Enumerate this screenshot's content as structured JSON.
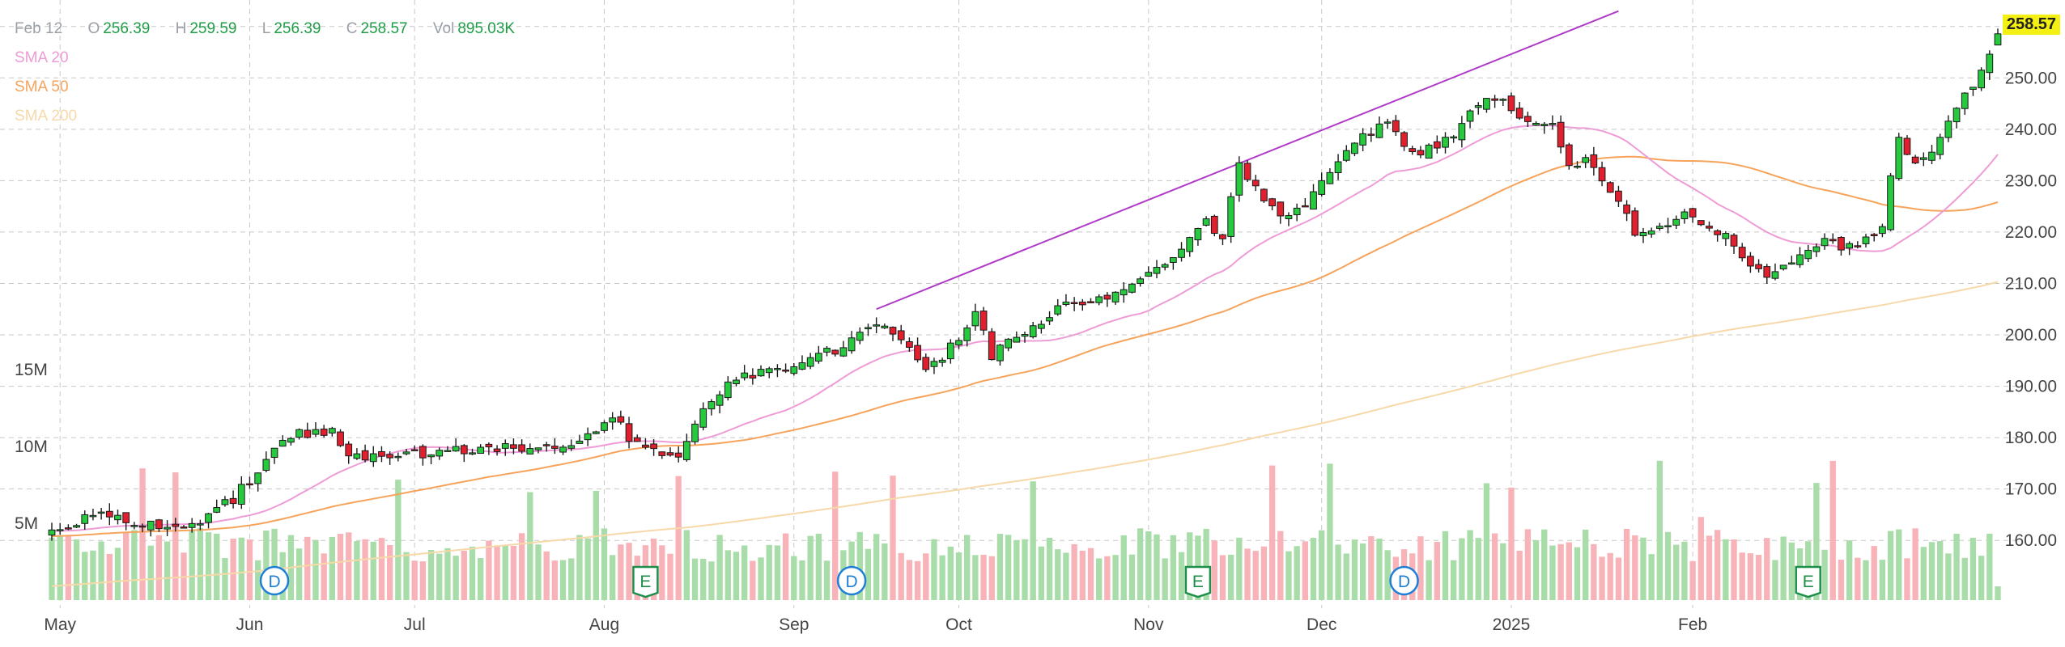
{
  "legend": {
    "date": "Feb 12",
    "open_key": "O",
    "open": "256.39",
    "high_key": "H",
    "high": "259.59",
    "low_key": "L",
    "low": "256.39",
    "close_key": "C",
    "close": "258.57",
    "vol_key": "Vol",
    "vol": "895.03K",
    "sma20": "SMA 20",
    "sma50": "SMA 50",
    "sma200": "SMA 200"
  },
  "last_price_label": "258.57",
  "colors": {
    "up": "#27c93f",
    "down": "#e0202e",
    "vol_up": "#a8dca8",
    "vol_down": "#f7b3b8",
    "sma20": "#ee9bd6",
    "sma50": "#f6a35c",
    "sma200": "#f7d9a9",
    "trendline": "#b03ac8",
    "grid": "#c8c8c8",
    "event_d": "#1f7fd6",
    "event_e": "#1e8f4a"
  },
  "chart_data": {
    "type": "candlestick",
    "title": "",
    "y_axis": {
      "ticks": [
        160,
        170,
        180,
        190,
        200,
        210,
        220,
        230,
        240,
        250,
        260
      ],
      "range": [
        155,
        262
      ]
    },
    "volume_axis": {
      "ticks": [
        "5M",
        "10M",
        "15M"
      ],
      "values": [
        5,
        10,
        15
      ]
    },
    "x_axis": {
      "labels": [
        {
          "label": "May",
          "date": "2024-05-01"
        },
        {
          "label": "Jun",
          "date": "2024-06-03"
        },
        {
          "label": "Jul",
          "date": "2024-07-01"
        },
        {
          "label": "Aug",
          "date": "2024-08-01"
        },
        {
          "label": "Sep",
          "date": "2024-09-03"
        },
        {
          "label": "Oct",
          "date": "2024-10-01"
        },
        {
          "label": "Nov",
          "date": "2024-11-01"
        },
        {
          "label": "Dec",
          "date": "2024-12-02"
        },
        {
          "label": "2025",
          "date": "2025-01-02"
        },
        {
          "label": "Feb",
          "date": "2025-02-03"
        }
      ]
    },
    "price_keypoints": [
      [
        0,
        162
      ],
      [
        6,
        165
      ],
      [
        10,
        163
      ],
      [
        14,
        163
      ],
      [
        18,
        164
      ],
      [
        22,
        168
      ],
      [
        26,
        176
      ],
      [
        30,
        181
      ],
      [
        34,
        181
      ],
      [
        36,
        176
      ],
      [
        40,
        177
      ],
      [
        46,
        177
      ],
      [
        52,
        178
      ],
      [
        56,
        178
      ],
      [
        60,
        179
      ],
      [
        64,
        179
      ],
      [
        68,
        184
      ],
      [
        70,
        180
      ],
      [
        72,
        178
      ],
      [
        74,
        176
      ],
      [
        76,
        177
      ],
      [
        79,
        186
      ],
      [
        82,
        190
      ],
      [
        86,
        193
      ],
      [
        90,
        193
      ],
      [
        96,
        198
      ],
      [
        100,
        203
      ],
      [
        102,
        200
      ],
      [
        104,
        197
      ],
      [
        106,
        194
      ],
      [
        108,
        196
      ],
      [
        112,
        204
      ],
      [
        114,
        196
      ],
      [
        116,
        199
      ],
      [
        122,
        205
      ],
      [
        128,
        208
      ],
      [
        132,
        210
      ],
      [
        136,
        216
      ],
      [
        140,
        222
      ],
      [
        142,
        218
      ],
      [
        144,
        234
      ],
      [
        146,
        228
      ],
      [
        148,
        224
      ],
      [
        150,
        223
      ],
      [
        152,
        225
      ],
      [
        154,
        229
      ],
      [
        156,
        233
      ],
      [
        158,
        237
      ],
      [
        160,
        240
      ],
      [
        162,
        242
      ],
      [
        164,
        236
      ],
      [
        166,
        235
      ],
      [
        168,
        237
      ],
      [
        170,
        239
      ],
      [
        172,
        243
      ],
      [
        174,
        247
      ],
      [
        176,
        246
      ],
      [
        178,
        243
      ],
      [
        180,
        242
      ],
      [
        182,
        241
      ],
      [
        184,
        232
      ],
      [
        186,
        234
      ],
      [
        188,
        231
      ],
      [
        190,
        226
      ],
      [
        192,
        220
      ],
      [
        194,
        221
      ],
      [
        196,
        222
      ],
      [
        198,
        223
      ],
      [
        200,
        222
      ],
      [
        202,
        220
      ],
      [
        204,
        218
      ],
      [
        206,
        213
      ],
      [
        208,
        212
      ],
      [
        210,
        214
      ],
      [
        212,
        215
      ],
      [
        214,
        218
      ],
      [
        216,
        218
      ],
      [
        218,
        217
      ],
      [
        220,
        219
      ],
      [
        222,
        221
      ],
      [
        224,
        239
      ],
      [
        226,
        233
      ],
      [
        228,
        236
      ],
      [
        230,
        242
      ],
      [
        232,
        246
      ],
      [
        234,
        252
      ],
      [
        236,
        258
      ]
    ],
    "total_sessions": 237,
    "last_candle": {
      "open": 256.39,
      "high": 259.59,
      "low": 256.39,
      "close": 258.57
    },
    "trendline": {
      "from": [
        100,
        205
      ],
      "to": [
        190,
        263
      ]
    },
    "events": [
      {
        "type": "D",
        "session": 27
      },
      {
        "type": "E",
        "session": 72
      },
      {
        "type": "D",
        "session": 97
      },
      {
        "type": "E",
        "session": 139
      },
      {
        "type": "D",
        "session": 164
      },
      {
        "type": "E",
        "session": 213
      }
    ],
    "legend_series": [
      "SMA 20",
      "SMA 50",
      "SMA 200"
    ],
    "grid": true
  }
}
